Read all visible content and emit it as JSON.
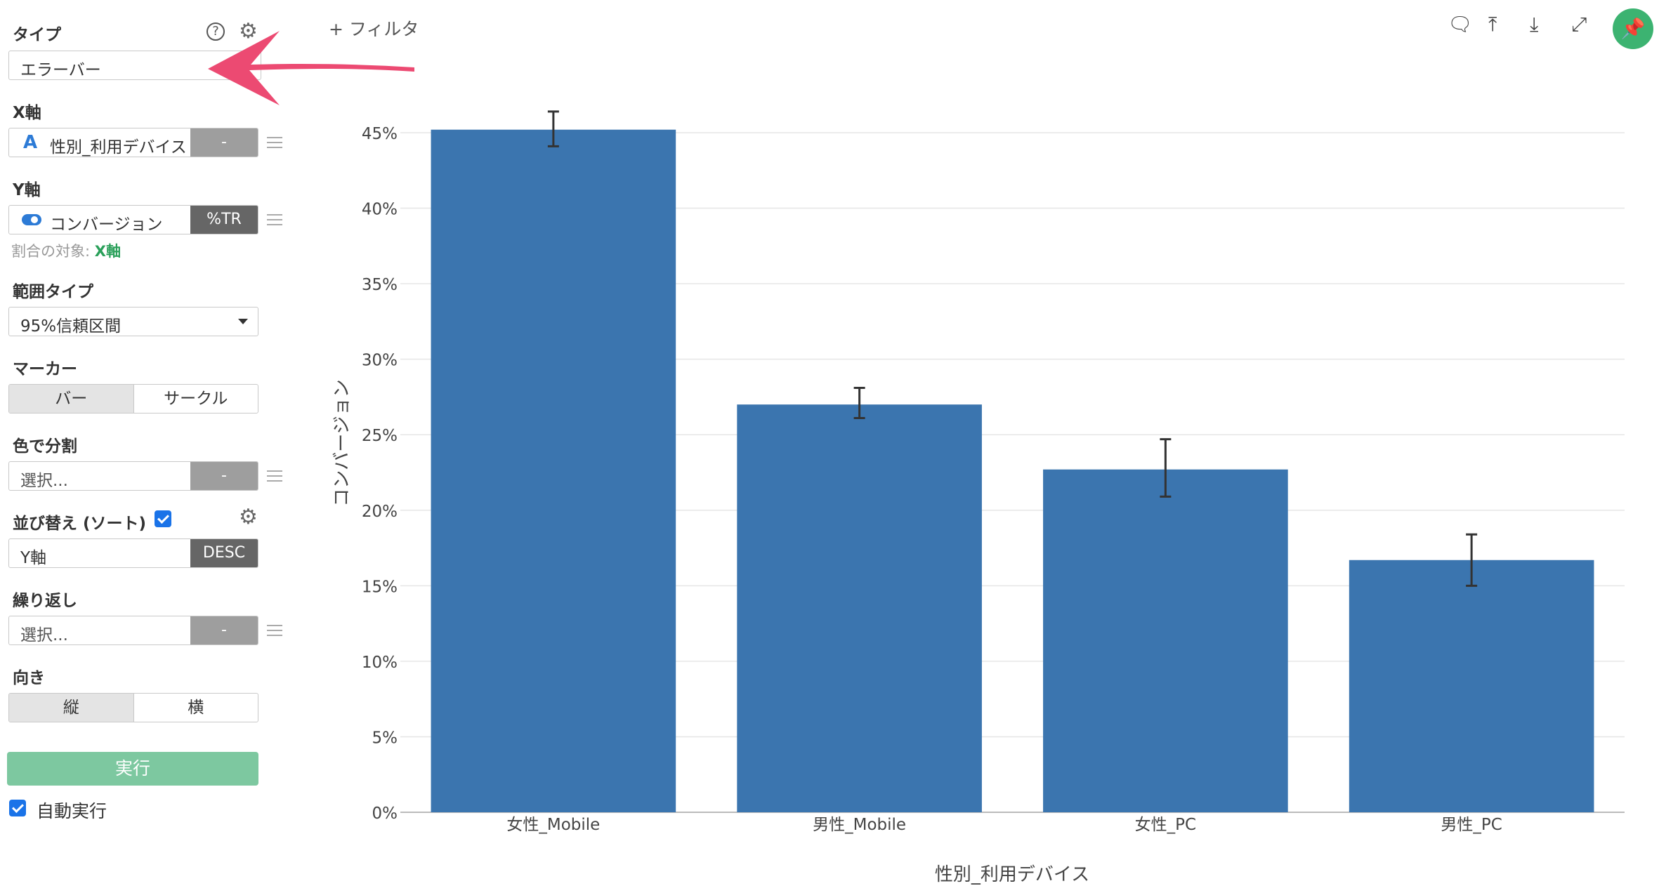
{
  "sidebar": {
    "type_label": "タイプ",
    "type_value": "エラーバー",
    "x_label": "X軸",
    "x_value": "性別_利用デバイス",
    "x_suffix": "-",
    "y_label": "Y軸",
    "y_value": "コンバージョン",
    "y_suffix": "%TR",
    "ratio_target_label": "割合の対象:",
    "ratio_target_value": "X軸",
    "range_type_label": "範囲タイプ",
    "range_type_value": "95%信頼区間",
    "marker_label": "マーカー",
    "marker_options": [
      "バー",
      "サークル"
    ],
    "color_split_label": "色で分割",
    "color_split_value": "選択...",
    "color_split_suffix": "-",
    "sort_label": "並び替え (ソート)",
    "sort_value": "Y軸",
    "sort_order": "DESC",
    "repeat_label": "繰り返し",
    "repeat_value": "選択...",
    "repeat_suffix": "-",
    "orientation_label": "向き",
    "orientation_options": [
      "縦",
      "横"
    ],
    "run_button": "実行",
    "auto_run_label": "自動実行"
  },
  "toolbar": {
    "filter_label": "+ フィルタ"
  },
  "colors": {
    "bar": "#3b75af",
    "accent_green": "#3cb371",
    "arrow": "#ec4a72"
  },
  "chart_data": {
    "type": "bar",
    "categories": [
      "女性_Mobile",
      "男性_Mobile",
      "女性_PC",
      "男性_PC"
    ],
    "values": [
      45.2,
      27.0,
      22.7,
      16.7
    ],
    "error_low": [
      44.1,
      26.1,
      20.9,
      15.0
    ],
    "error_high": [
      46.4,
      28.1,
      24.7,
      18.4
    ],
    "xlabel": "性別_利用デバイス",
    "ylabel": "コンバージョン",
    "y_ticks": [
      "0%",
      "5%",
      "10%",
      "15%",
      "20%",
      "25%",
      "30%",
      "35%",
      "40%",
      "45%"
    ],
    "ylim": [
      0,
      45
    ],
    "grid": true
  }
}
